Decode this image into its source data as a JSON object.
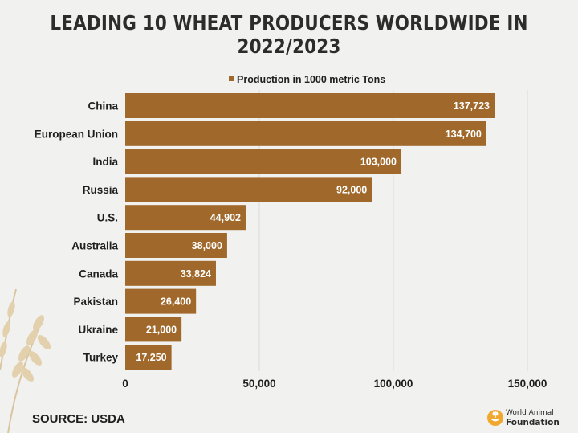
{
  "title": "LEADING 10 WHEAT PRODUCERS WORLDWIDE IN 2022/2023",
  "source": "SOURCE: USDA",
  "logo": {
    "line1": "World Animal",
    "line2": "Foundation",
    "icon": "wheat-bowl-logo-icon"
  },
  "colors": {
    "bar": "#a0692b",
    "background": "#f1f1ef",
    "grid": "#dcdcdc"
  },
  "chart_data": {
    "type": "bar",
    "orientation": "horizontal",
    "title": "LEADING 10 WHEAT PRODUCERS WORLDWIDE IN 2022/2023",
    "categories": [
      "China",
      "European Union",
      "India",
      "Russia",
      "U.S.",
      "Australia",
      "Canada",
      "Pakistan",
      "Ukraine",
      "Turkey"
    ],
    "values": [
      137723,
      134700,
      103000,
      92000,
      44902,
      38000,
      33824,
      26400,
      21000,
      17250
    ],
    "value_labels": [
      "137,723",
      "134,700",
      "103,000",
      "92,000",
      "44,902",
      "38,000",
      "33,824",
      "26,400",
      "21,000",
      "17,250"
    ],
    "series": [
      {
        "name": "Production in 1000 metric Tons",
        "values": [
          137723,
          134700,
          103000,
          92000,
          44902,
          38000,
          33824,
          26400,
          21000,
          17250
        ]
      }
    ],
    "xlim": [
      0,
      150000
    ],
    "xticks": [
      0,
      50000,
      100000,
      150000
    ],
    "xtick_labels": [
      "0",
      "50,000",
      "100,000",
      "150,000"
    ],
    "xlabel": "",
    "ylabel": "",
    "grid": true,
    "legend_position": "top-center"
  }
}
